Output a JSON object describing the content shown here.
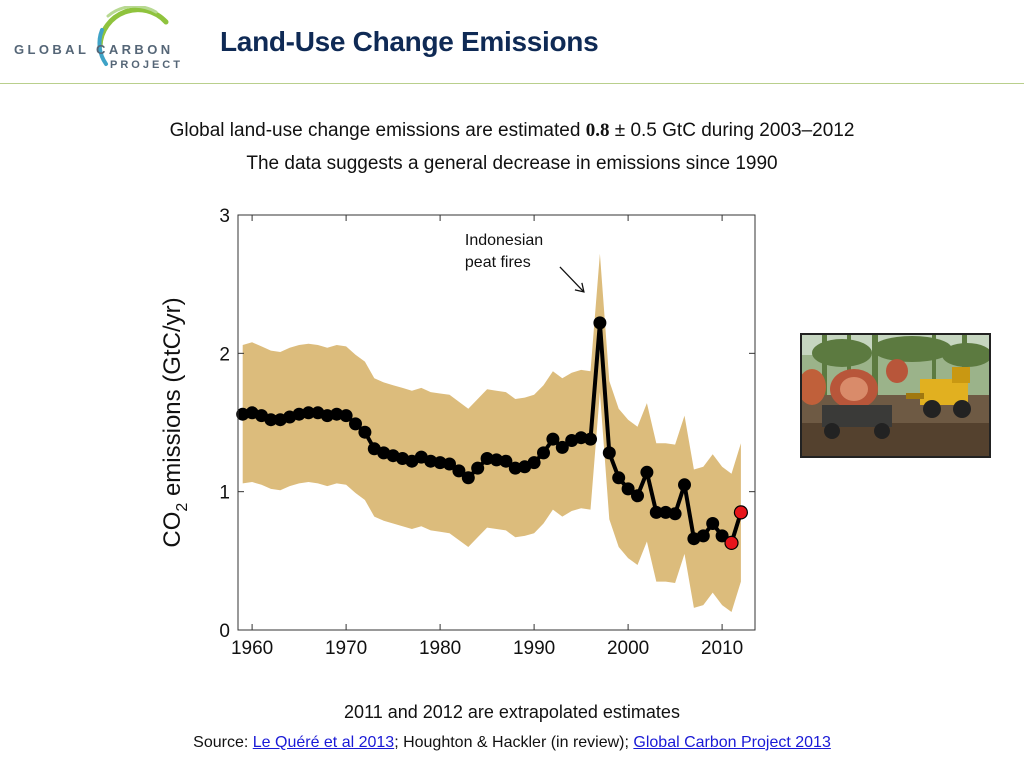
{
  "logo": {
    "line1": "GLOBAL CARBON",
    "line2": "PROJECT"
  },
  "header": {
    "title": "Land-Use Change Emissions"
  },
  "subtitle": {
    "line1_pre": "Global land-use change emissions are estimated ",
    "line1_value": "0.8",
    "line1_pm": " ± ",
    "line1_post": "0.5 GtC during 2003–2012",
    "line2": "The data suggests a general decrease in emissions since 1990"
  },
  "chart_data": {
    "type": "line",
    "xlabel": "",
    "ylabel_pre": "CO",
    "ylabel_sub": "2",
    "ylabel_post": " emissions (GtC/yr)",
    "xlim": [
      1958.5,
      2013.5
    ],
    "ylim": [
      0,
      3
    ],
    "xticks": [
      1960,
      1970,
      1980,
      1990,
      2000,
      2010
    ],
    "yticks": [
      0,
      1,
      2,
      3
    ],
    "grid": false,
    "x": [
      1959,
      1960,
      1961,
      1962,
      1963,
      1964,
      1965,
      1966,
      1967,
      1968,
      1969,
      1970,
      1971,
      1972,
      1973,
      1974,
      1975,
      1976,
      1977,
      1978,
      1979,
      1980,
      1981,
      1982,
      1983,
      1984,
      1985,
      1986,
      1987,
      1988,
      1989,
      1990,
      1991,
      1992,
      1993,
      1994,
      1995,
      1996,
      1997,
      1998,
      1999,
      2000,
      2001,
      2002,
      2003,
      2004,
      2005,
      2006,
      2007,
      2008,
      2009,
      2010,
      2011,
      2012
    ],
    "y": [
      1.56,
      1.57,
      1.55,
      1.52,
      1.52,
      1.54,
      1.56,
      1.57,
      1.57,
      1.55,
      1.56,
      1.55,
      1.49,
      1.43,
      1.31,
      1.28,
      1.26,
      1.24,
      1.22,
      1.25,
      1.22,
      1.21,
      1.2,
      1.15,
      1.1,
      1.17,
      1.24,
      1.23,
      1.22,
      1.17,
      1.18,
      1.21,
      1.28,
      1.38,
      1.32,
      1.37,
      1.39,
      1.38,
      2.22,
      1.28,
      1.1,
      1.02,
      0.97,
      1.14,
      0.85,
      0.85,
      0.84,
      1.05,
      0.66,
      0.68,
      0.77,
      0.68,
      0.63,
      0.85
    ],
    "upper": [
      2.06,
      2.08,
      2.05,
      2.02,
      2.01,
      2.04,
      2.06,
      2.07,
      2.06,
      2.04,
      2.06,
      2.05,
      1.99,
      1.94,
      1.82,
      1.79,
      1.77,
      1.75,
      1.73,
      1.75,
      1.72,
      1.71,
      1.7,
      1.65,
      1.6,
      1.67,
      1.74,
      1.73,
      1.72,
      1.67,
      1.68,
      1.7,
      1.77,
      1.87,
      1.82,
      1.86,
      1.88,
      1.87,
      2.72,
      1.8,
      1.6,
      1.52,
      1.47,
      1.64,
      1.35,
      1.35,
      1.34,
      1.55,
      1.16,
      1.18,
      1.27,
      1.18,
      1.13,
      1.35
    ],
    "lower": [
      1.06,
      1.07,
      1.05,
      1.02,
      1.01,
      1.04,
      1.06,
      1.07,
      1.06,
      1.04,
      1.06,
      1.05,
      0.99,
      0.94,
      0.82,
      0.79,
      0.77,
      0.75,
      0.73,
      0.75,
      0.72,
      0.71,
      0.7,
      0.65,
      0.6,
      0.67,
      0.74,
      0.73,
      0.72,
      0.67,
      0.68,
      0.7,
      0.77,
      0.87,
      0.82,
      0.86,
      0.88,
      0.87,
      1.72,
      0.8,
      0.6,
      0.52,
      0.47,
      0.64,
      0.35,
      0.35,
      0.34,
      0.55,
      0.16,
      0.18,
      0.27,
      0.18,
      0.13,
      0.35
    ],
    "extrapolated_years": [
      2011,
      2012
    ],
    "annotation": {
      "line1": "Indonesian",
      "line2": "peat fires",
      "x": 1997,
      "y": 2.22
    },
    "colors": {
      "band": "#dcbc7c",
      "line": "#000000",
      "marker": "#000000",
      "extrapolated": "#e8151b"
    }
  },
  "notes": {
    "extrapolated": "2011 and 2012 are extrapolated estimates",
    "source_label": "Source: ",
    "source_link1": "Le Quéré et al 2013",
    "source_sep1": "; Houghton & Hackler (in review); ",
    "source_link2": "Global Carbon Project 2013"
  },
  "photo": {
    "icon": "deforestation-photo"
  }
}
